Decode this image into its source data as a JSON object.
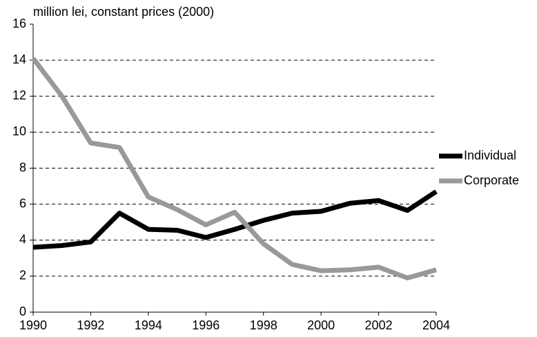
{
  "chart_data": {
    "type": "line",
    "y_label": "million lei, constant prices (2000)",
    "x": [
      1990,
      1991,
      1992,
      1993,
      1994,
      1995,
      1996,
      1997,
      1998,
      1999,
      2000,
      2001,
      2002,
      2003,
      2004
    ],
    "series": [
      {
        "name": "Individual",
        "color": "#000000",
        "values": [
          3.6,
          3.7,
          3.9,
          5.5,
          4.6,
          4.55,
          4.15,
          4.6,
          5.1,
          5.5,
          5.6,
          6.05,
          6.2,
          5.65,
          6.7
        ]
      },
      {
        "name": "Corporate",
        "color": "#999999",
        "values": [
          14.1,
          12.0,
          9.4,
          9.15,
          6.4,
          5.7,
          4.85,
          5.55,
          3.8,
          2.65,
          2.3,
          2.35,
          2.5,
          1.9,
          2.35
        ]
      }
    ],
    "xlim": [
      1990,
      2004
    ],
    "xticks": [
      1990,
      1992,
      1994,
      1996,
      1998,
      2000,
      2002,
      2004
    ],
    "ylim": [
      0,
      16
    ],
    "yticks": [
      0,
      2,
      4,
      6,
      8,
      10,
      12,
      14,
      16
    ],
    "grid": true,
    "legend": "right"
  }
}
